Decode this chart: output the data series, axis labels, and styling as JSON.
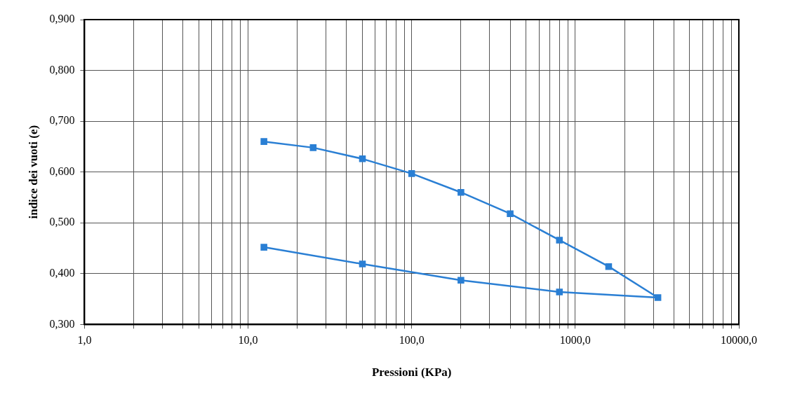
{
  "chart_data": {
    "type": "line",
    "xlabel": "Pressioni (KPa)",
    "ylabel": "indice dei vuoti (e)",
    "series": [
      {
        "color": "#2a7fd4",
        "x": [
          12.5,
          25,
          50,
          100,
          200,
          400,
          800,
          1600,
          3200,
          800,
          200,
          50,
          12.5
        ],
        "values": [
          0.66,
          0.648,
          0.626,
          0.597,
          0.56,
          0.518,
          0.466,
          0.414,
          0.353,
          0.364,
          0.387,
          0.419,
          0.452
        ]
      }
    ],
    "log": "x",
    "xlim": [
      1,
      10000
    ],
    "ylim": [
      0.3,
      0.9
    ],
    "xticks": [
      {
        "value": 1,
        "label": "1,0"
      },
      {
        "value": 2,
        "label": null
      },
      {
        "value": 3,
        "label": null
      },
      {
        "value": 4,
        "label": null
      },
      {
        "value": 5,
        "label": null
      },
      {
        "value": 6,
        "label": null
      },
      {
        "value": 7,
        "label": null
      },
      {
        "value": 8,
        "label": null
      },
      {
        "value": 9,
        "label": null
      },
      {
        "value": 10,
        "label": "10,0"
      },
      {
        "value": 20,
        "label": null
      },
      {
        "value": 30,
        "label": null
      },
      {
        "value": 40,
        "label": null
      },
      {
        "value": 50,
        "label": null
      },
      {
        "value": 60,
        "label": null
      },
      {
        "value": 70,
        "label": null
      },
      {
        "value": 80,
        "label": null
      },
      {
        "value": 90,
        "label": null
      },
      {
        "value": 100,
        "label": "100,0"
      },
      {
        "value": 200,
        "label": null
      },
      {
        "value": 300,
        "label": null
      },
      {
        "value": 400,
        "label": null
      },
      {
        "value": 500,
        "label": null
      },
      {
        "value": 600,
        "label": null
      },
      {
        "value": 700,
        "label": null
      },
      {
        "value": 800,
        "label": null
      },
      {
        "value": 900,
        "label": null
      },
      {
        "value": 1000,
        "label": "1000,0"
      },
      {
        "value": 2000,
        "label": null
      },
      {
        "value": 3000,
        "label": null
      },
      {
        "value": 4000,
        "label": null
      },
      {
        "value": 5000,
        "label": null
      },
      {
        "value": 6000,
        "label": null
      },
      {
        "value": 7000,
        "label": null
      },
      {
        "value": 8000,
        "label": null
      },
      {
        "value": 9000,
        "label": null
      },
      {
        "value": 10000,
        "label": "10000,0"
      }
    ],
    "yticks": [
      {
        "value": 0.3,
        "label": "0,300"
      },
      {
        "value": 0.4,
        "label": "0,400"
      },
      {
        "value": 0.5,
        "label": "0,500"
      },
      {
        "value": 0.6,
        "label": "0,600"
      },
      {
        "value": 0.7,
        "label": "0,700"
      },
      {
        "value": 0.8,
        "label": "0,800"
      },
      {
        "value": 0.9,
        "label": "0,900"
      }
    ],
    "grid": true,
    "legend": false,
    "marker": "square",
    "line_style": "solid"
  }
}
